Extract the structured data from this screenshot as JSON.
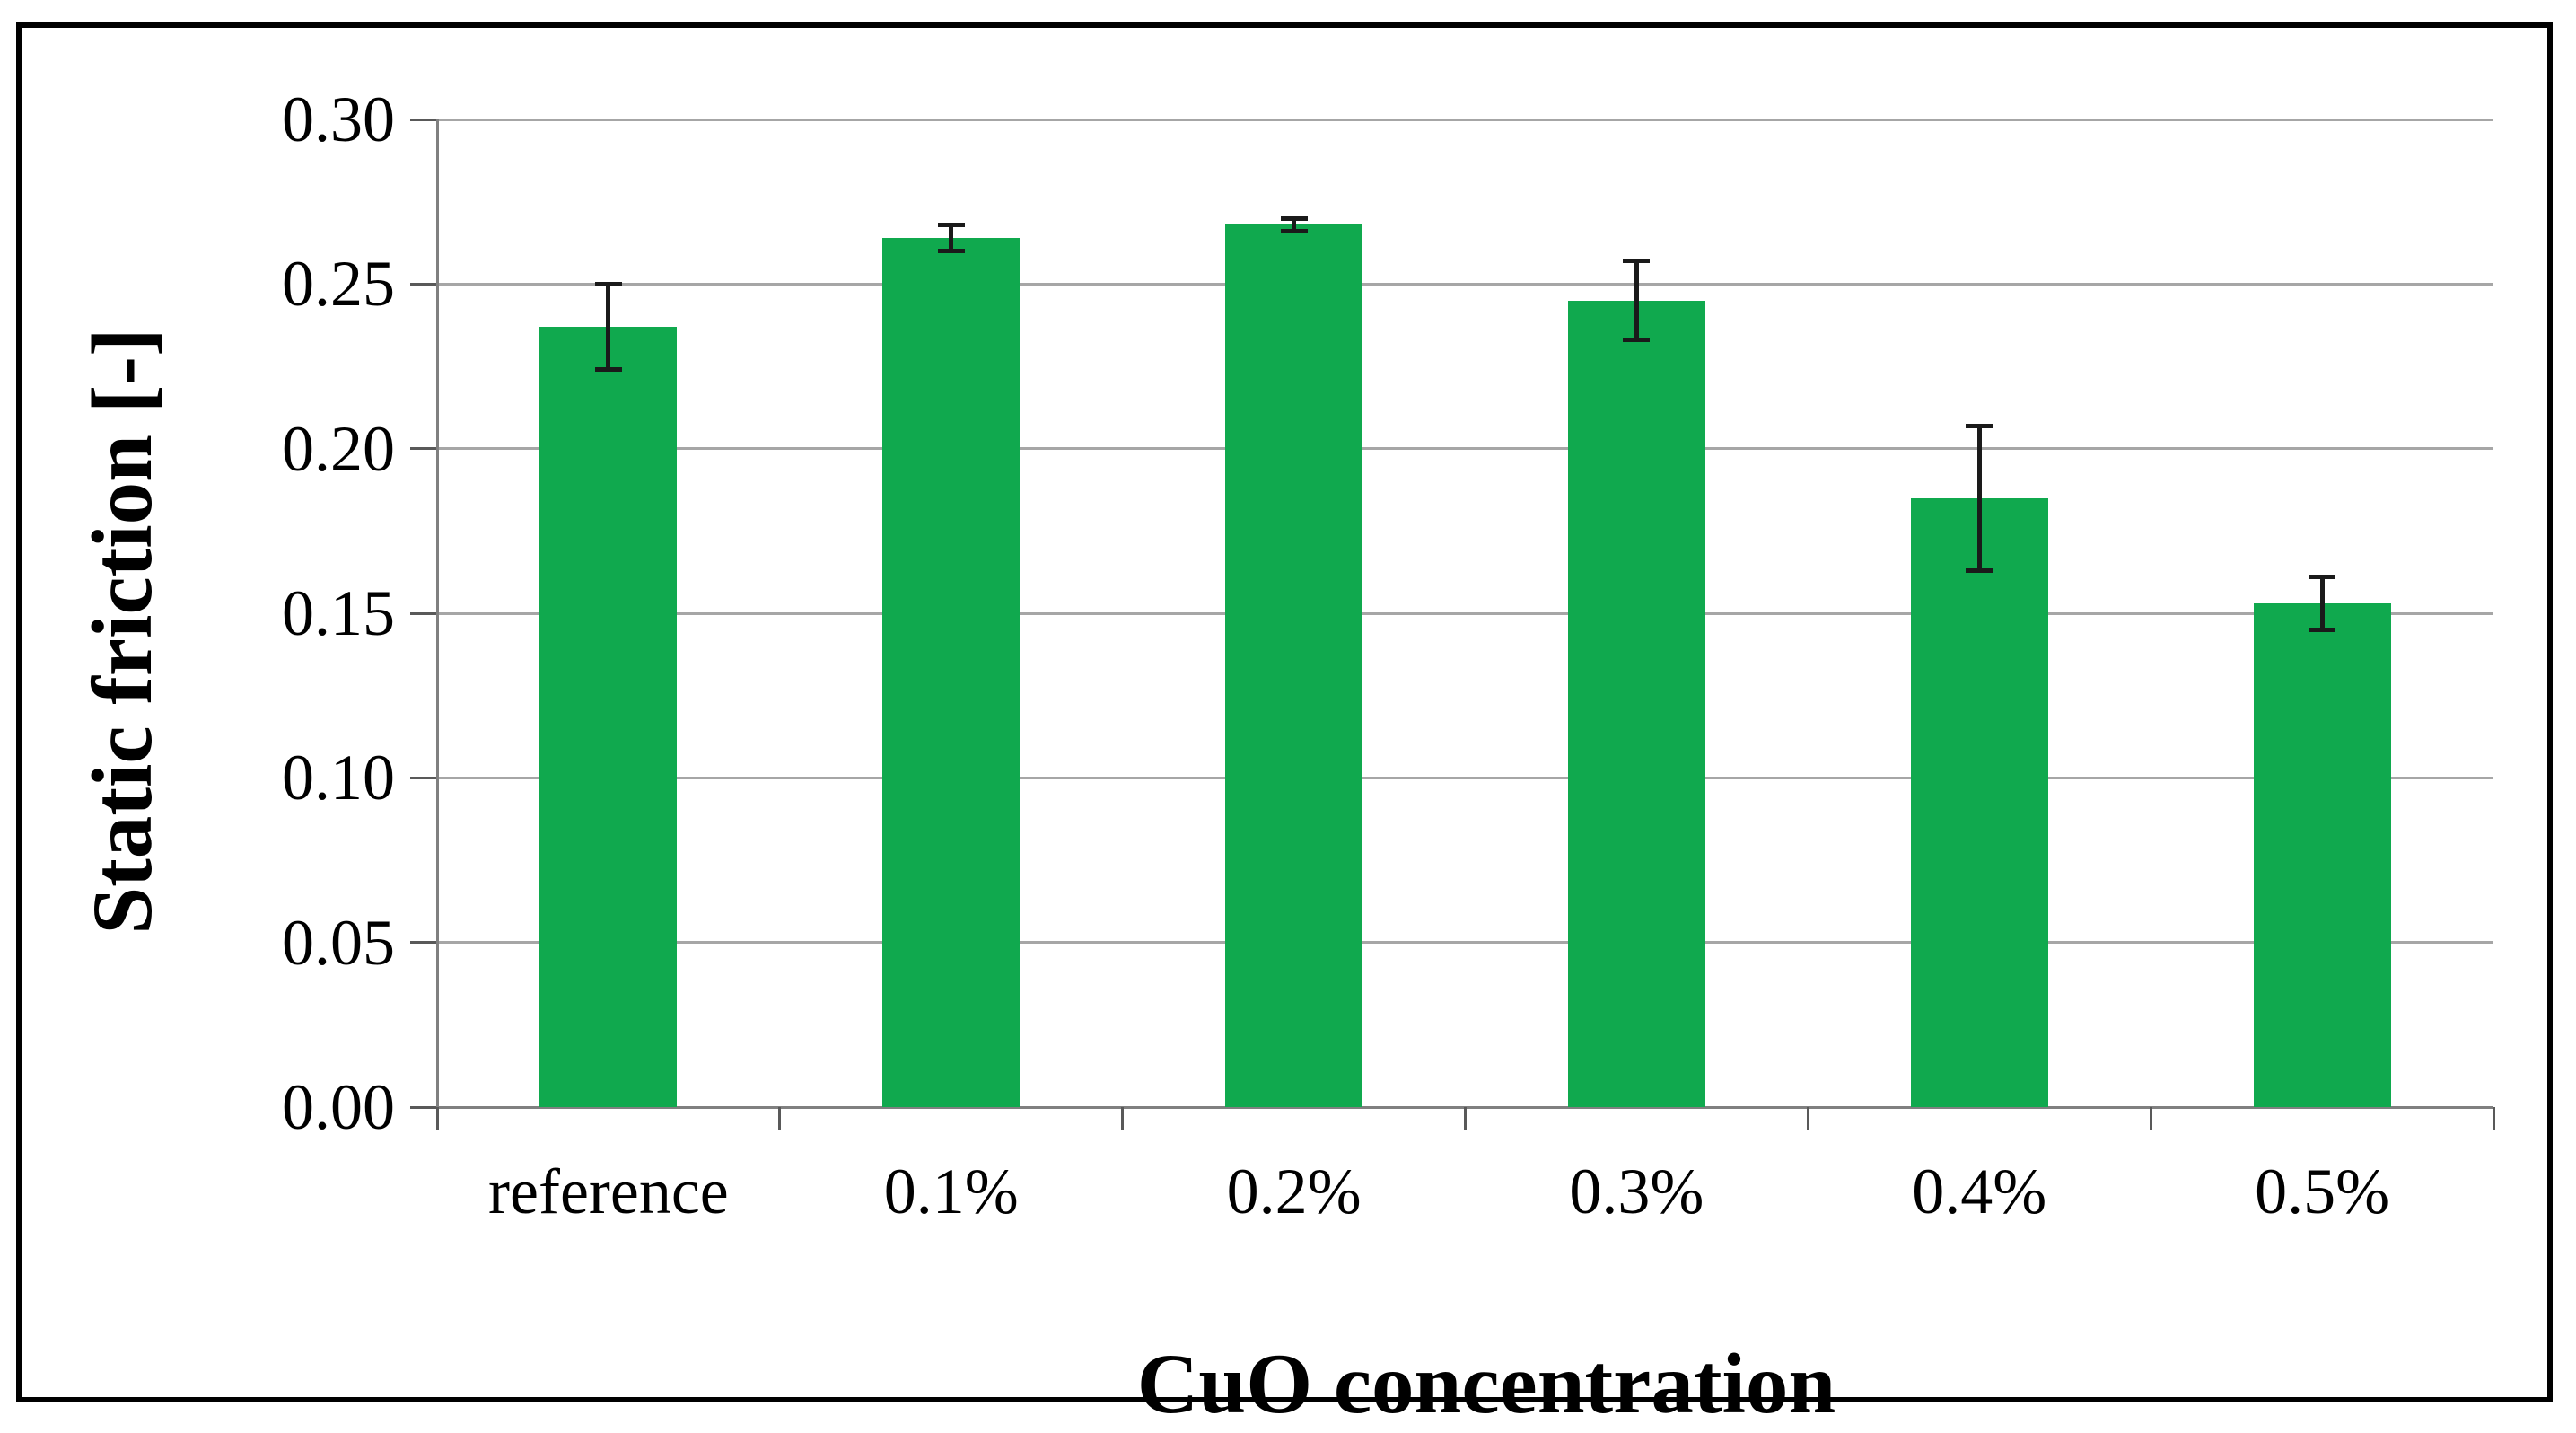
{
  "figure": {
    "kind": "bar chart with error bars",
    "background_color": "#ffffff",
    "frame_color": "#000000"
  },
  "chart_data": {
    "type": "bar",
    "title": "",
    "xlabel": "CuO concentration",
    "ylabel": "Static friction [-]",
    "categories": [
      "reference",
      "0.1%",
      "0.2%",
      "0.3%",
      "0.4%",
      "0.5%"
    ],
    "series": [
      {
        "name": "Static friction",
        "values": [
          0.237,
          0.264,
          0.268,
          0.245,
          0.185,
          0.153
        ],
        "errors": [
          0.013,
          0.004,
          0.002,
          0.012,
          0.022,
          0.008
        ]
      }
    ],
    "ylim": [
      0.0,
      0.3
    ],
    "ytick_step": 0.05,
    "ytick_labels": [
      "0.00",
      "0.05",
      "0.10",
      "0.15",
      "0.20",
      "0.25",
      "0.30"
    ],
    "grid": "horizontal",
    "legend_position": "none",
    "bar_color": "#10A94E",
    "error_bar_color": "#1a1a1a",
    "gridline_color": "#a6a6a6",
    "axis_color": "#808080",
    "tick_color": "#595959"
  }
}
